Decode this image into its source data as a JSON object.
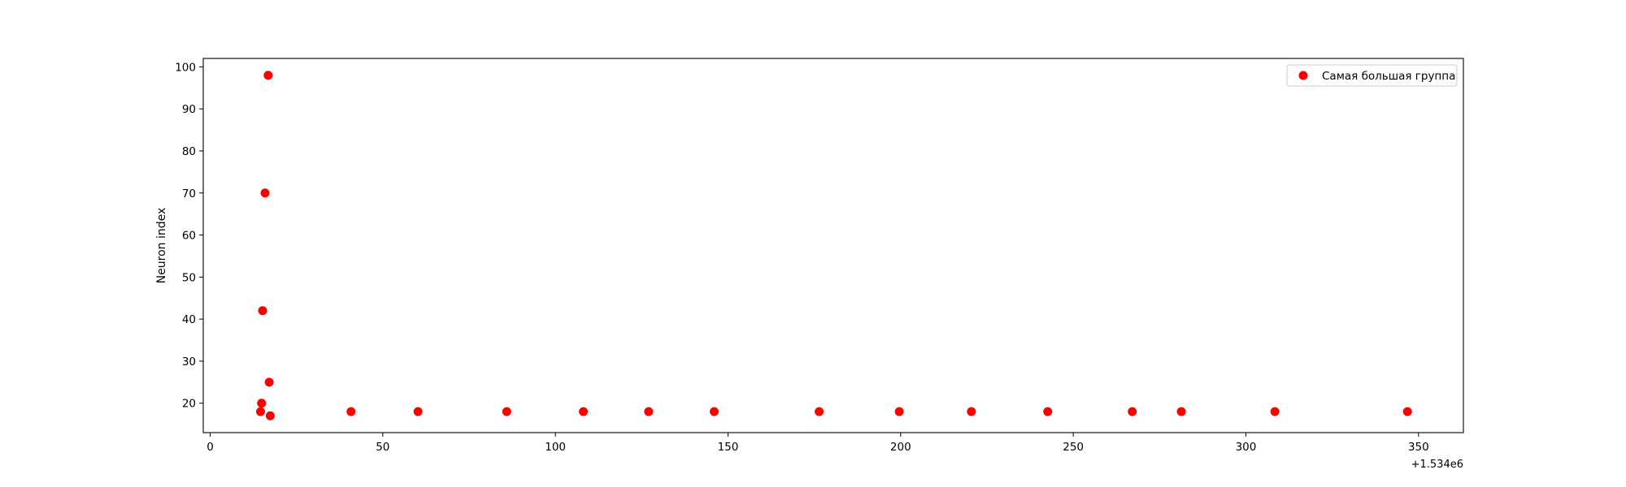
{
  "chart_data": {
    "type": "scatter",
    "title": "",
    "xlabel": "",
    "ylabel": "Neuron index",
    "x_offset_label": "+1.534e6",
    "xlim": [
      -2,
      363
    ],
    "ylim": [
      13,
      102
    ],
    "xticks": [
      0,
      50,
      100,
      150,
      200,
      250,
      300,
      350
    ],
    "yticks": [
      20,
      30,
      40,
      50,
      60,
      70,
      80,
      90,
      100
    ],
    "grid": false,
    "legend_position": "top-right",
    "series": [
      {
        "name": "Самая большая группа",
        "color": "#ff0000",
        "marker": "circle",
        "points": [
          {
            "x": 14.6,
            "y": 18
          },
          {
            "x": 14.9,
            "y": 20
          },
          {
            "x": 15.2,
            "y": 42
          },
          {
            "x": 15.9,
            "y": 70
          },
          {
            "x": 16.8,
            "y": 98
          },
          {
            "x": 17.1,
            "y": 25
          },
          {
            "x": 17.4,
            "y": 17
          },
          {
            "x": 40.8,
            "y": 18
          },
          {
            "x": 60.2,
            "y": 18
          },
          {
            "x": 85.9,
            "y": 18
          },
          {
            "x": 108.1,
            "y": 18
          },
          {
            "x": 127.0,
            "y": 18
          },
          {
            "x": 146.0,
            "y": 18
          },
          {
            "x": 176.4,
            "y": 18
          },
          {
            "x": 199.6,
            "y": 18
          },
          {
            "x": 220.5,
            "y": 18
          },
          {
            "x": 242.6,
            "y": 18
          },
          {
            "x": 267.1,
            "y": 18
          },
          {
            "x": 281.3,
            "y": 18
          },
          {
            "x": 308.4,
            "y": 18
          },
          {
            "x": 346.8,
            "y": 18
          }
        ]
      }
    ]
  }
}
